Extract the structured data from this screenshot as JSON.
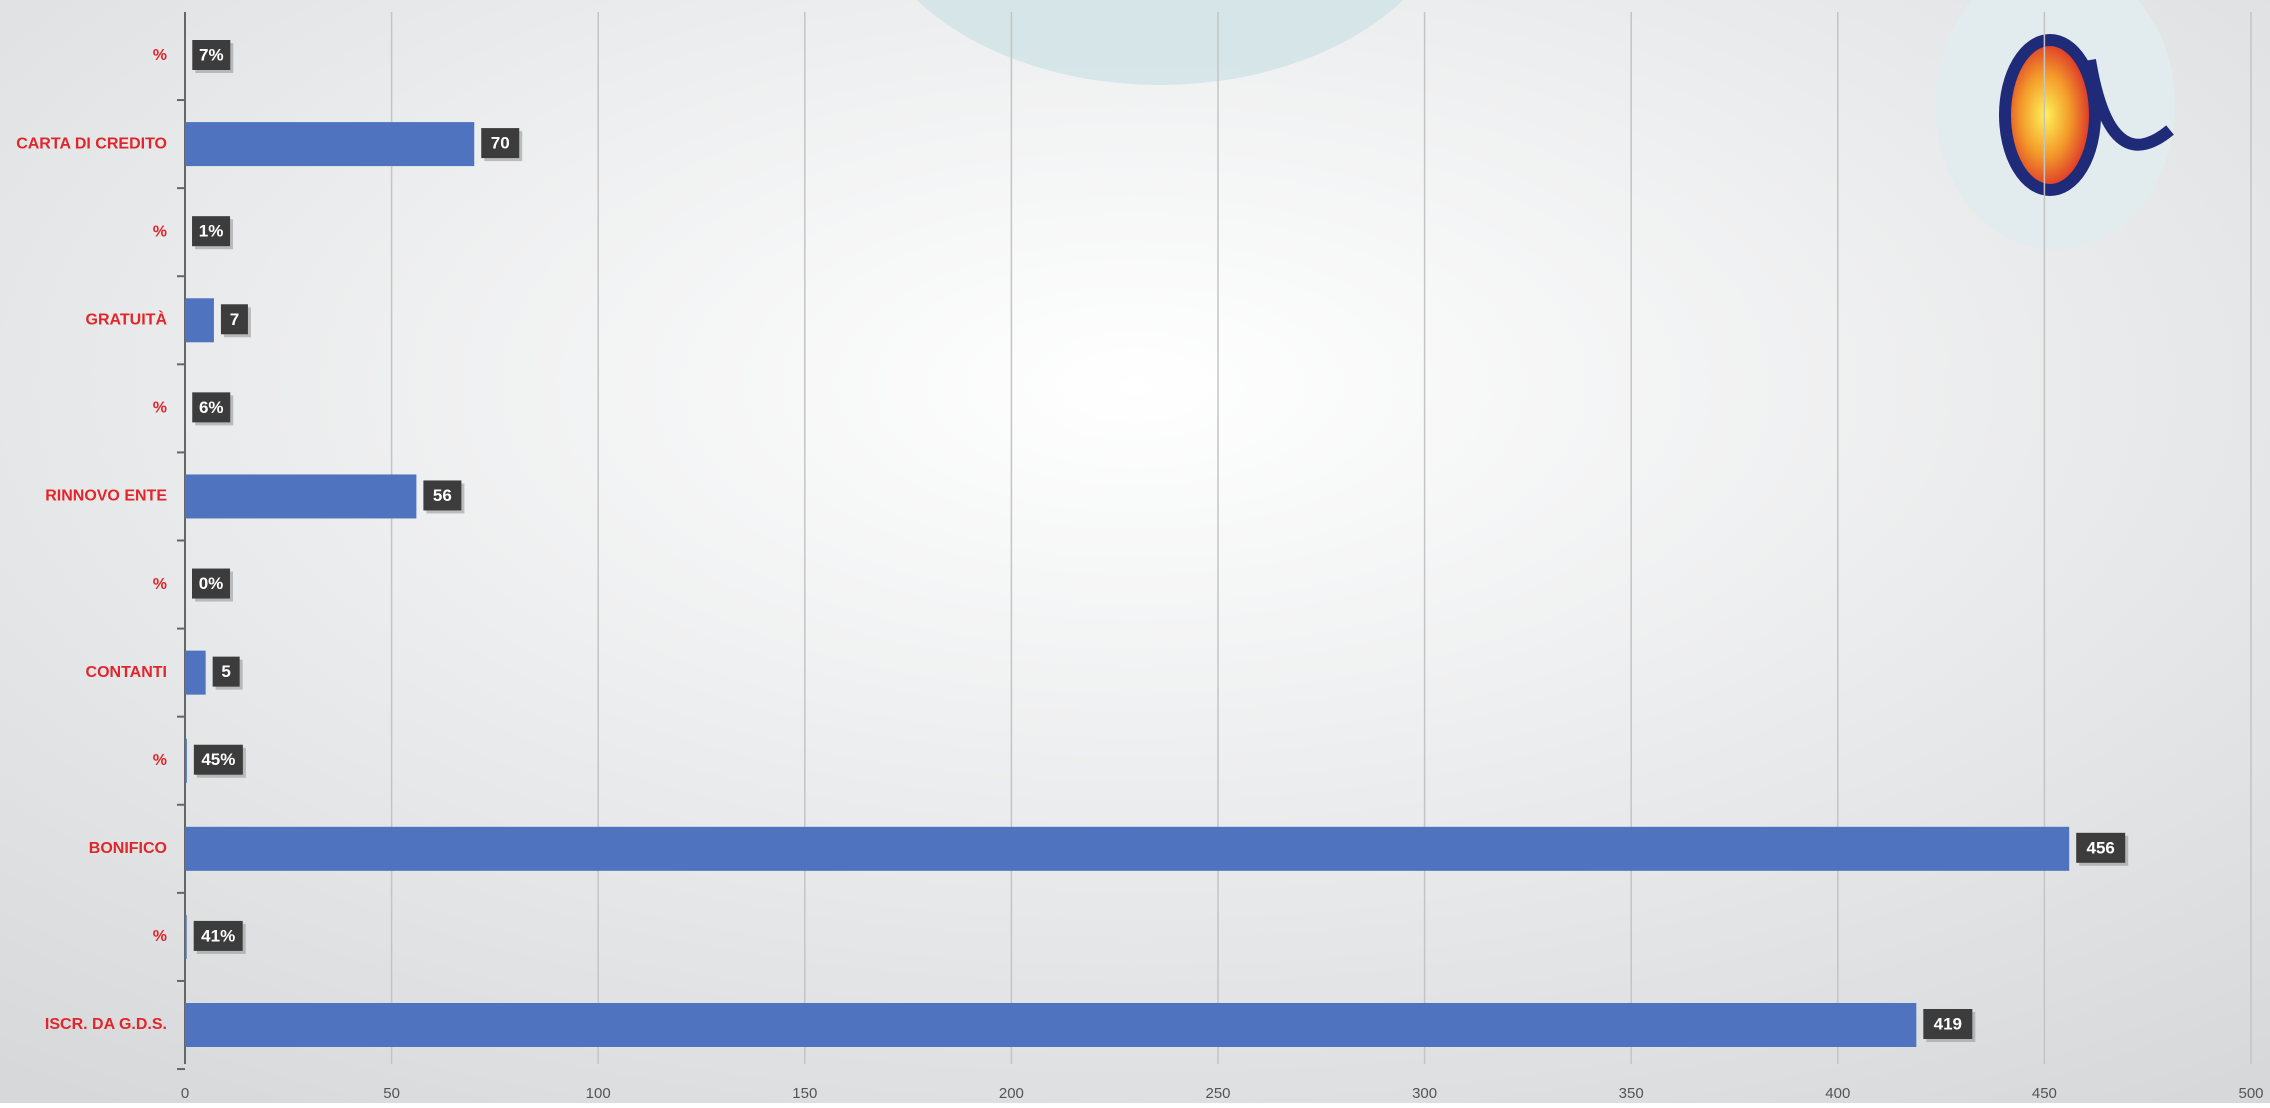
{
  "chart_data": {
    "type": "hbar",
    "categories": [
      "%",
      "CARTA DI CREDITO",
      "%",
      "GRATUITÀ",
      "%",
      "RINNOVO ENTE",
      "%",
      "CONTANTI",
      "%",
      "BONIFICO",
      "%",
      "ISCR. DA G.D.S."
    ],
    "values": [
      0.07,
      70,
      0.01,
      7,
      0.06,
      56,
      0,
      5,
      0.45,
      456,
      0.41,
      419
    ],
    "value_labels": [
      "7%",
      "70",
      "1%",
      "7",
      "6%",
      "56",
      "0%",
      "5",
      "45%",
      "456",
      "41%",
      "419"
    ],
    "color": "#4f73be",
    "xlim": [
      0,
      500
    ],
    "xticks": [
      0,
      50,
      100,
      150,
      200,
      250,
      300,
      350,
      400,
      450,
      500
    ],
    "grid": true
  }
}
